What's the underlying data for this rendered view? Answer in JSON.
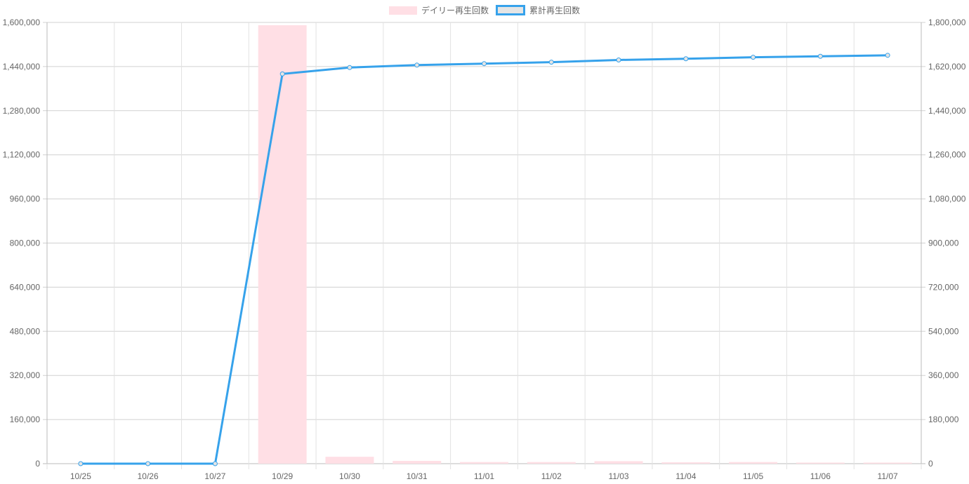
{
  "chart_data": {
    "type": "bar+line",
    "categories": [
      "10/25",
      "10/26",
      "10/27",
      "10/29",
      "10/30",
      "10/31",
      "11/01",
      "11/02",
      "11/03",
      "11/04",
      "11/05",
      "11/06",
      "11/07"
    ],
    "series": [
      {
        "name": "デイリー再生回数",
        "type": "bar",
        "axis": "left",
        "color": "#ffdfe5",
        "values": [
          0,
          0,
          0,
          1590000,
          25000,
          10000,
          6000,
          6000,
          9000,
          5000,
          6000,
          4000,
          4000
        ]
      },
      {
        "name": "累計再生回数",
        "type": "line",
        "axis": "right",
        "color": "#36a2eb",
        "values": [
          0,
          0,
          0,
          1590000,
          1616000,
          1626000,
          1632000,
          1638000,
          1647000,
          1652000,
          1658000,
          1662000,
          1666000
        ]
      }
    ],
    "y_left": {
      "range": [
        0,
        1600000
      ],
      "ticks": [
        "0",
        "160,000",
        "320,000",
        "480,000",
        "640,000",
        "800,000",
        "960,000",
        "1,120,000",
        "1,280,000",
        "1,440,000",
        "1,600,000"
      ]
    },
    "y_right": {
      "range": [
        0,
        1800000
      ],
      "ticks": [
        "0",
        "180,000",
        "360,000",
        "540,000",
        "720,000",
        "900,000",
        "1,080,000",
        "1,260,000",
        "1,440,000",
        "1,620,000",
        "1,800,000"
      ]
    },
    "grid": true,
    "legend": "top"
  }
}
